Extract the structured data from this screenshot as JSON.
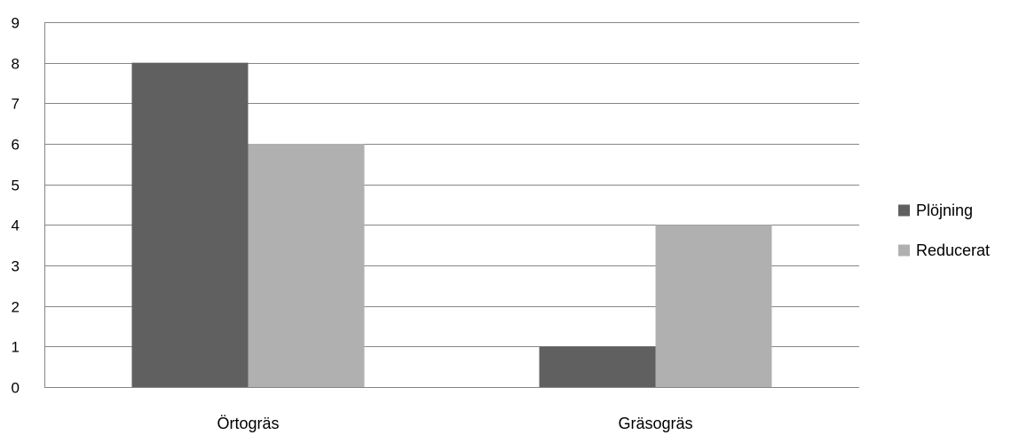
{
  "chart_data": {
    "type": "bar",
    "categories": [
      "Örtogräs",
      "Gräsogräs"
    ],
    "series": [
      {
        "name": "Plöjning",
        "values": [
          8,
          1
        ],
        "color": "#606060"
      },
      {
        "name": "Reducerat",
        "values": [
          6,
          4
        ],
        "color": "#b0b0b0"
      }
    ],
    "ylim": [
      0,
      9
    ],
    "yticks": [
      "0",
      "1",
      "2",
      "3",
      "4",
      "5",
      "6",
      "7",
      "8",
      "9"
    ],
    "grid": true,
    "legend_position": "right",
    "gridline_color": "#868686",
    "axis_color": "#868686"
  }
}
